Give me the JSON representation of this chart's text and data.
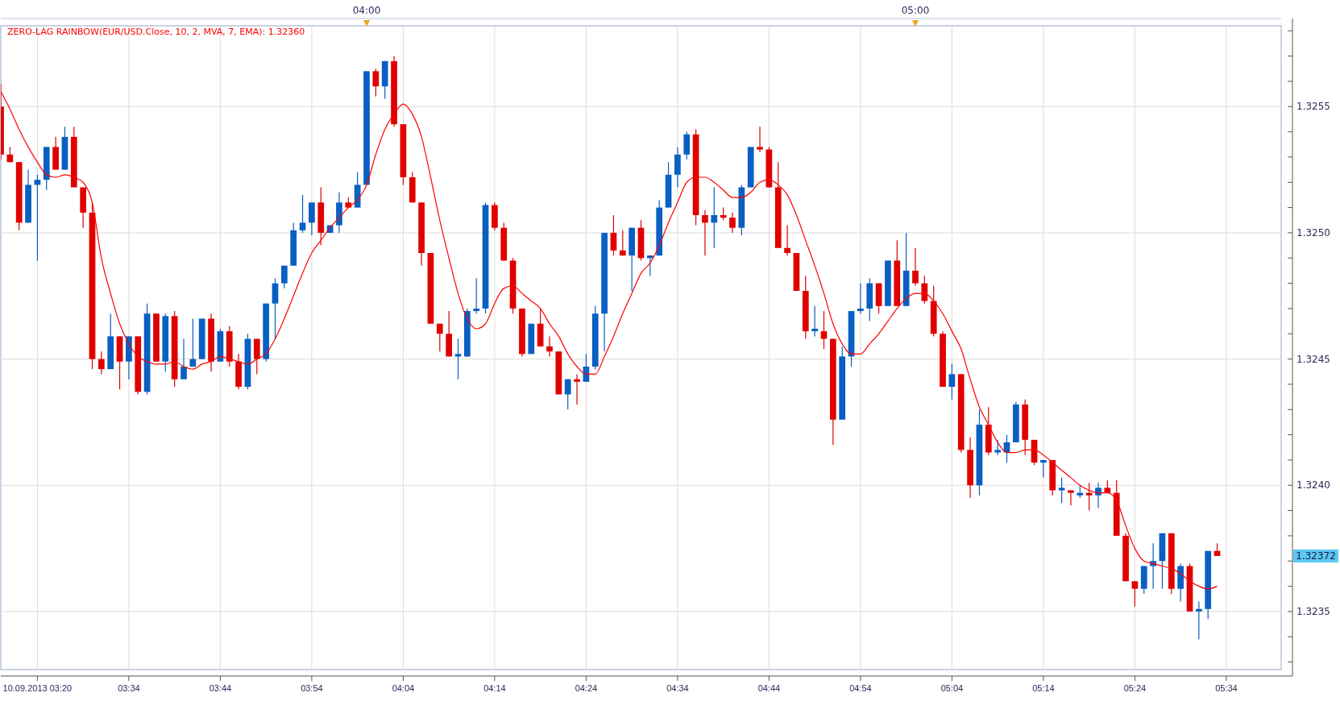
{
  "chart_data": {
    "type": "candlestick",
    "title": "ZERO-LAG RAINBOW(EUR/USD.Close, 10, 2, MVA, 7, EMA): 1.32360",
    "x": [
      "2013-09-10T03:20",
      "2013-09-10T03:21",
      "2013-09-10T03:22",
      "2013-09-10T03:23",
      "2013-09-10T03:24",
      "2013-09-10T03:25",
      "2013-09-10T03:26",
      "2013-09-10T03:27",
      "2013-09-10T03:28",
      "2013-09-10T03:29",
      "2013-09-10T03:30",
      "2013-09-10T03:31",
      "2013-09-10T03:32",
      "2013-09-10T03:33",
      "2013-09-10T03:34",
      "2013-09-10T03:35",
      "2013-09-10T03:36",
      "2013-09-10T03:37",
      "2013-09-10T03:38",
      "2013-09-10T03:39",
      "2013-09-10T03:40",
      "2013-09-10T03:41",
      "2013-09-10T03:42",
      "2013-09-10T03:43",
      "2013-09-10T03:44",
      "2013-09-10T03:45",
      "2013-09-10T03:46",
      "2013-09-10T03:47",
      "2013-09-10T03:48",
      "2013-09-10T03:49",
      "2013-09-10T03:50",
      "2013-09-10T03:51",
      "2013-09-10T03:52",
      "2013-09-10T03:53",
      "2013-09-10T03:54",
      "2013-09-10T03:55",
      "2013-09-10T03:56",
      "2013-09-10T03:57",
      "2013-09-10T03:58",
      "2013-09-10T03:59",
      "2013-09-10T04:00",
      "2013-09-10T04:01",
      "2013-09-10T04:02",
      "2013-09-10T04:03",
      "2013-09-10T04:04",
      "2013-09-10T04:05",
      "2013-09-10T04:06",
      "2013-09-10T04:07",
      "2013-09-10T04:08",
      "2013-09-10T04:09",
      "2013-09-10T04:10",
      "2013-09-10T04:11",
      "2013-09-10T04:12",
      "2013-09-10T04:13",
      "2013-09-10T04:14",
      "2013-09-10T04:15",
      "2013-09-10T04:16",
      "2013-09-10T04:17",
      "2013-09-10T04:18",
      "2013-09-10T04:19",
      "2013-09-10T04:20",
      "2013-09-10T04:21",
      "2013-09-10T04:22",
      "2013-09-10T04:23",
      "2013-09-10T04:24",
      "2013-09-10T04:25",
      "2013-09-10T04:26",
      "2013-09-10T04:27",
      "2013-09-10T04:28",
      "2013-09-10T04:29",
      "2013-09-10T04:30",
      "2013-09-10T04:31",
      "2013-09-10T04:32",
      "2013-09-10T04:33",
      "2013-09-10T04:34",
      "2013-09-10T04:35",
      "2013-09-10T04:36",
      "2013-09-10T04:37",
      "2013-09-10T04:38",
      "2013-09-10T04:39",
      "2013-09-10T04:40",
      "2013-09-10T04:41",
      "2013-09-10T04:42",
      "2013-09-10T04:43",
      "2013-09-10T04:44",
      "2013-09-10T04:45",
      "2013-09-10T04:46",
      "2013-09-10T04:47",
      "2013-09-10T04:48",
      "2013-09-10T04:49",
      "2013-09-10T04:50",
      "2013-09-10T04:51",
      "2013-09-10T04:52",
      "2013-09-10T04:53",
      "2013-09-10T04:54",
      "2013-09-10T04:55",
      "2013-09-10T04:56",
      "2013-09-10T04:57",
      "2013-09-10T04:58",
      "2013-09-10T04:59",
      "2013-09-10T05:00",
      "2013-09-10T05:01",
      "2013-09-10T05:02",
      "2013-09-10T05:03",
      "2013-09-10T05:04",
      "2013-09-10T05:05",
      "2013-09-10T05:06",
      "2013-09-10T05:07",
      "2013-09-10T05:08",
      "2013-09-10T05:09",
      "2013-09-10T05:10",
      "2013-09-10T05:11",
      "2013-09-10T05:12",
      "2013-09-10T05:13",
      "2013-09-10T05:14",
      "2013-09-10T05:15",
      "2013-09-10T05:16",
      "2013-09-10T05:17",
      "2013-09-10T05:18",
      "2013-09-10T05:19",
      "2013-09-10T05:20",
      "2013-09-10T05:21",
      "2013-09-10T05:22",
      "2013-09-10T05:23",
      "2013-09-10T05:24",
      "2013-09-10T05:25",
      "2013-09-10T05:26",
      "2013-09-10T05:27",
      "2013-09-10T05:28",
      "2013-09-10T05:29",
      "2013-09-10T05:30",
      "2013-09-10T05:31",
      "2013-09-10T05:32",
      "2013-09-10T05:33"
    ],
    "series": [
      {
        "ohlc": [
          [
            1.3255,
            1.32559,
            1.32529,
            1.32531
          ],
          [
            1.32531,
            1.32534,
            1.32528,
            1.32528
          ],
          [
            1.32528,
            1.32528,
            1.32501,
            1.32504
          ],
          [
            1.32504,
            1.32525,
            1.32504,
            1.32519
          ],
          [
            1.32519,
            1.32523,
            1.32489,
            1.32521
          ],
          [
            1.32521,
            1.32534,
            1.32517,
            1.32534
          ],
          [
            1.32534,
            1.32538,
            1.32525,
            1.32525
          ],
          [
            1.32525,
            1.32542,
            1.32525,
            1.32538
          ],
          [
            1.32538,
            1.32542,
            1.32518,
            1.32518
          ],
          [
            1.32518,
            1.32518,
            1.32502,
            1.32508
          ],
          [
            1.32508,
            1.32512,
            1.32446,
            1.3245
          ],
          [
            1.3245,
            1.32453,
            1.32444,
            1.32446
          ],
          [
            1.32446,
            1.32468,
            1.32446,
            1.32459
          ],
          [
            1.32459,
            1.32459,
            1.32438,
            1.32449
          ],
          [
            1.32449,
            1.32459,
            1.32442,
            1.32459
          ],
          [
            1.32459,
            1.32459,
            1.32436,
            1.32437
          ],
          [
            1.32437,
            1.32472,
            1.32436,
            1.32468
          ],
          [
            1.32468,
            1.32468,
            1.32449,
            1.32449
          ],
          [
            1.32449,
            1.32468,
            1.32445,
            1.32467
          ],
          [
            1.32467,
            1.32469,
            1.32439,
            1.32442
          ],
          [
            1.32442,
            1.32458,
            1.32442,
            1.32447
          ],
          [
            1.32447,
            1.32466,
            1.32447,
            1.3245
          ],
          [
            1.3245,
            1.32466,
            1.3245,
            1.32466
          ],
          [
            1.32466,
            1.32468,
            1.32445,
            1.32449
          ],
          [
            1.32449,
            1.32462,
            1.32449,
            1.32461
          ],
          [
            1.32461,
            1.32463,
            1.32447,
            1.32449
          ],
          [
            1.32449,
            1.32452,
            1.32438,
            1.32439
          ],
          [
            1.32439,
            1.3246,
            1.32438,
            1.32458
          ],
          [
            1.32458,
            1.32458,
            1.32444,
            1.3245
          ],
          [
            1.3245,
            1.32472,
            1.32449,
            1.32472
          ],
          [
            1.32472,
            1.32482,
            1.32458,
            1.3248
          ],
          [
            1.3248,
            1.32487,
            1.32478,
            1.32487
          ],
          [
            1.32487,
            1.32504,
            1.32487,
            1.32501
          ],
          [
            1.32501,
            1.32515,
            1.325,
            1.32504
          ],
          [
            1.32504,
            1.32512,
            1.32499,
            1.32512
          ],
          [
            1.32512,
            1.32518,
            1.32495,
            1.325
          ],
          [
            1.325,
            1.32503,
            1.325,
            1.32503
          ],
          [
            1.32503,
            1.32516,
            1.325,
            1.32512
          ],
          [
            1.32512,
            1.32514,
            1.3251,
            1.3251
          ],
          [
            1.3251,
            1.32524,
            1.3251,
            1.32519
          ],
          [
            1.32519,
            1.32564,
            1.32519,
            1.32564
          ],
          [
            1.32564,
            1.32565,
            1.32554,
            1.32558
          ],
          [
            1.32558,
            1.32568,
            1.32553,
            1.32568
          ],
          [
            1.32568,
            1.3257,
            1.32542,
            1.32543
          ],
          [
            1.32543,
            1.32543,
            1.32519,
            1.32522
          ],
          [
            1.32522,
            1.32524,
            1.32512,
            1.32512
          ],
          [
            1.32512,
            1.32512,
            1.32487,
            1.32492
          ],
          [
            1.32492,
            1.32492,
            1.32464,
            1.32464
          ],
          [
            1.32464,
            1.32464,
            1.32453,
            1.3246
          ],
          [
            1.3246,
            1.32469,
            1.32451,
            1.32451
          ],
          [
            1.32451,
            1.32458,
            1.32442,
            1.32452
          ],
          [
            1.32451,
            1.3247,
            1.32451,
            1.32469
          ],
          [
            1.32469,
            1.32482,
            1.32468,
            1.3247
          ],
          [
            1.3247,
            1.32512,
            1.32468,
            1.32511
          ],
          [
            1.32511,
            1.32512,
            1.32501,
            1.32502
          ],
          [
            1.32502,
            1.32504,
            1.32489,
            1.32489
          ],
          [
            1.32489,
            1.3249,
            1.32468,
            1.3247
          ],
          [
            1.3247,
            1.3247,
            1.32451,
            1.32452
          ],
          [
            1.32452,
            1.32464,
            1.32452,
            1.32464
          ],
          [
            1.32464,
            1.3247,
            1.32455,
            1.32455
          ],
          [
            1.32455,
            1.32459,
            1.32451,
            1.32453
          ],
          [
            1.32453,
            1.32453,
            1.32436,
            1.32436
          ],
          [
            1.32436,
            1.32442,
            1.3243,
            1.32442
          ],
          [
            1.32442,
            1.32444,
            1.32432,
            1.32441
          ],
          [
            1.32441,
            1.32452,
            1.32441,
            1.32447
          ],
          [
            1.32447,
            1.32471,
            1.32446,
            1.32468
          ],
          [
            1.32468,
            1.325,
            1.32453,
            1.325
          ],
          [
            1.325,
            1.32507,
            1.32491,
            1.32493
          ],
          [
            1.32493,
            1.32501,
            1.32491,
            1.32491
          ],
          [
            1.32491,
            1.32502,
            1.32477,
            1.32502
          ],
          [
            1.32502,
            1.32505,
            1.32489,
            1.3249
          ],
          [
            1.3249,
            1.32491,
            1.32483,
            1.32491
          ],
          [
            1.32491,
            1.32513,
            1.32491,
            1.3251
          ],
          [
            1.3251,
            1.32528,
            1.3251,
            1.32523
          ],
          [
            1.32523,
            1.32534,
            1.32518,
            1.32531
          ],
          [
            1.32531,
            1.3254,
            1.32529,
            1.32539
          ],
          [
            1.32539,
            1.32541,
            1.32503,
            1.32507
          ],
          [
            1.32507,
            1.32509,
            1.32491,
            1.32504
          ],
          [
            1.32504,
            1.32518,
            1.32494,
            1.32507
          ],
          [
            1.32507,
            1.3251,
            1.32505,
            1.32506
          ],
          [
            1.32506,
            1.32508,
            1.325,
            1.32502
          ],
          [
            1.32502,
            1.32519,
            1.32499,
            1.32518
          ],
          [
            1.32518,
            1.32534,
            1.32518,
            1.32534
          ],
          [
            1.32534,
            1.32542,
            1.32532,
            1.32533
          ],
          [
            1.32533,
            1.32534,
            1.32518,
            1.32518
          ],
          [
            1.32518,
            1.32528,
            1.32494,
            1.32494
          ],
          [
            1.32494,
            1.32503,
            1.32491,
            1.32492
          ],
          [
            1.32492,
            1.32492,
            1.32477,
            1.32477
          ],
          [
            1.32477,
            1.32483,
            1.32458,
            1.32461
          ],
          [
            1.32461,
            1.32471,
            1.32459,
            1.32462
          ],
          [
            1.32461,
            1.32469,
            1.32454,
            1.32458
          ],
          [
            1.32458,
            1.32458,
            1.32416,
            1.32426
          ],
          [
            1.32426,
            1.32455,
            1.32426,
            1.32451
          ],
          [
            1.32451,
            1.32469,
            1.32447,
            1.32469
          ],
          [
            1.32469,
            1.3248,
            1.32468,
            1.3247
          ],
          [
            1.3247,
            1.32482,
            1.32465,
            1.3248
          ],
          [
            1.3248,
            1.3248,
            1.32468,
            1.32471
          ],
          [
            1.32471,
            1.32489,
            1.32471,
            1.32489
          ],
          [
            1.32489,
            1.32497,
            1.32471,
            1.32471
          ],
          [
            1.32471,
            1.325,
            1.32471,
            1.32485
          ],
          [
            1.32485,
            1.32494,
            1.32479,
            1.3248
          ],
          [
            1.3248,
            1.32483,
            1.32472,
            1.32473
          ],
          [
            1.32473,
            1.32479,
            1.32459,
            1.3246
          ],
          [
            1.3246,
            1.32461,
            1.32439,
            1.32439
          ],
          [
            1.32439,
            1.32448,
            1.32434,
            1.32444
          ],
          [
            1.32444,
            1.32444,
            1.32413,
            1.32414
          ],
          [
            1.32414,
            1.32419,
            1.32395,
            1.324
          ],
          [
            1.324,
            1.3243,
            1.32396,
            1.32424
          ],
          [
            1.32424,
            1.32431,
            1.32412,
            1.32413
          ],
          [
            1.32413,
            1.32418,
            1.32412,
            1.32414
          ],
          [
            1.32413,
            1.3242,
            1.32409,
            1.32417
          ],
          [
            1.32417,
            1.32433,
            1.32417,
            1.32432
          ],
          [
            1.32432,
            1.32434,
            1.32412,
            1.32418
          ],
          [
            1.32418,
            1.32418,
            1.32408,
            1.32409
          ],
          [
            1.32409,
            1.3241,
            1.32403,
            1.3241
          ],
          [
            1.3241,
            1.3241,
            1.32396,
            1.32398
          ],
          [
            1.32398,
            1.32403,
            1.32393,
            1.32399
          ],
          [
            1.32398,
            1.32398,
            1.32392,
            1.32397
          ],
          [
            1.32396,
            1.324,
            1.32395,
            1.32397
          ],
          [
            1.32397,
            1.32401,
            1.3239,
            1.32396
          ],
          [
            1.32396,
            1.32401,
            1.32391,
            1.32399
          ],
          [
            1.32399,
            1.32402,
            1.32397,
            1.32397
          ],
          [
            1.32397,
            1.32402,
            1.3238,
            1.3238
          ],
          [
            1.3238,
            1.32381,
            1.32362,
            1.32362
          ],
          [
            1.32362,
            1.32362,
            1.32352,
            1.32359
          ],
          [
            1.32359,
            1.32368,
            1.32357,
            1.32368
          ],
          [
            1.32368,
            1.32377,
            1.32359,
            1.3237
          ],
          [
            1.3237,
            1.32381,
            1.32359,
            1.32381
          ],
          [
            1.32381,
            1.32381,
            1.32357,
            1.32359
          ],
          [
            1.32359,
            1.32369,
            1.32354,
            1.32368
          ],
          [
            1.32368,
            1.32369,
            1.3235,
            1.3235
          ],
          [
            1.3235,
            1.32354,
            1.32339,
            1.32351
          ],
          [
            1.32351,
            1.32374,
            1.32347,
            1.32374
          ],
          [
            1.32374,
            1.32377,
            1.32372,
            1.32372
          ]
        ],
        "colors": [
          "#e00000",
          "#e00000",
          "#e00000",
          "#0a5fc2",
          "#0a5fc2",
          "#0a5fc2",
          "#e00000",
          "#0a5fc2",
          "#e00000",
          "#e00000",
          "#e00000",
          "#e00000",
          "#0a5fc2",
          "#e00000",
          "#0a5fc2",
          "#e00000",
          "#0a5fc2",
          "#e00000",
          "#0a5fc2",
          "#e00000",
          "#0a5fc2",
          "#0a5fc2",
          "#0a5fc2",
          "#e00000",
          "#0a5fc2",
          "#e00000",
          "#e00000",
          "#0a5fc2",
          "#e00000",
          "#0a5fc2",
          "#0a5fc2",
          "#0a5fc2",
          "#0a5fc2",
          "#0a5fc2",
          "#0a5fc2",
          "#e00000",
          "#0a5fc2",
          "#0a5fc2",
          "#e00000",
          "#0a5fc2",
          "#0a5fc2",
          "#e00000",
          "#0a5fc2",
          "#e00000",
          "#e00000",
          "#e00000",
          "#e00000",
          "#e00000",
          "#e00000",
          "#e00000",
          "#0a5fc2",
          "#0a5fc2",
          "#0a5fc2",
          "#0a5fc2",
          "#e00000",
          "#e00000",
          "#e00000",
          "#e00000",
          "#0a5fc2",
          "#e00000",
          "#e00000",
          "#e00000",
          "#0a5fc2",
          "#e00000",
          "#0a5fc2",
          "#0a5fc2",
          "#0a5fc2",
          "#e00000",
          "#e00000",
          "#0a5fc2",
          "#e00000",
          "#0a5fc2",
          "#0a5fc2",
          "#0a5fc2",
          "#0a5fc2",
          "#0a5fc2",
          "#e00000",
          "#e00000",
          "#0a5fc2",
          "#e00000",
          "#e00000",
          "#0a5fc2",
          "#0a5fc2",
          "#e00000",
          "#e00000",
          "#e00000",
          "#e00000",
          "#e00000",
          "#e00000",
          "#0a5fc2",
          "#e00000",
          "#e00000",
          "#0a5fc2",
          "#0a5fc2",
          "#0a5fc2",
          "#0a5fc2",
          "#e00000",
          "#0a5fc2",
          "#e00000",
          "#0a5fc2",
          "#e00000",
          "#e00000",
          "#e00000",
          "#e00000",
          "#0a5fc2",
          "#e00000",
          "#e00000",
          "#0a5fc2",
          "#e00000",
          "#0a5fc2",
          "#0a5fc2",
          "#0a5fc2",
          "#e00000",
          "#e00000",
          "#0a5fc2",
          "#e00000",
          "#0a5fc2",
          "#e00000",
          "#0a5fc2",
          "#e00000",
          "#0a5fc2",
          "#e00000",
          "#e00000",
          "#e00000",
          "#e00000",
          "#0a5fc2",
          "#0a5fc2",
          "#0a5fc2",
          "#e00000",
          "#0a5fc2",
          "#e00000",
          "#0a5fc2",
          "#0a5fc2",
          "#e00000"
        ]
      },
      {
        "type": "line",
        "color": "#ff0000",
        "values": [
          1.32556,
          1.32549,
          1.32541,
          1.32534,
          1.32528,
          1.32523,
          1.32522,
          1.32523,
          1.32522,
          1.3252,
          1.32512,
          1.3249,
          1.32476,
          1.32464,
          1.32456,
          1.32451,
          1.32449,
          1.32448,
          1.32448,
          1.32449,
          1.32447,
          1.32446,
          1.32448,
          1.32449,
          1.32451,
          1.3245,
          1.32449,
          1.32448,
          1.3245,
          1.32452,
          1.32458,
          1.32466,
          1.32475,
          1.32484,
          1.32492,
          1.32497,
          1.32502,
          1.32506,
          1.3251,
          1.32513,
          1.32519,
          1.32531,
          1.32541,
          1.32547,
          1.32551,
          1.32547,
          1.32538,
          1.32522,
          1.32505,
          1.3249,
          1.32476,
          1.32466,
          1.32462,
          1.32464,
          1.32472,
          1.32478,
          1.32479,
          1.32476,
          1.32473,
          1.3247,
          1.32464,
          1.32459,
          1.32452,
          1.32447,
          1.32444,
          1.32444,
          1.32451,
          1.32459,
          1.32468,
          1.32476,
          1.32484,
          1.32488,
          1.32495,
          1.32504,
          1.32512,
          1.3252,
          1.32522,
          1.32522,
          1.3252,
          1.32517,
          1.32514,
          1.32514,
          1.32516,
          1.3252,
          1.32521,
          1.32519,
          1.32515,
          1.32507,
          1.32497,
          1.32487,
          1.32476,
          1.32464,
          1.32456,
          1.32452,
          1.32452,
          1.32456,
          1.3246,
          1.32465,
          1.3247,
          1.32474,
          1.32476,
          1.32476,
          1.32473,
          1.32468,
          1.32461,
          1.32454,
          1.32442,
          1.32431,
          1.32424,
          1.32417,
          1.32413,
          1.32413,
          1.32414,
          1.32414,
          1.32412,
          1.32409,
          1.32406,
          1.32403,
          1.324,
          1.32398,
          1.32397,
          1.32397,
          1.32394,
          1.32384,
          1.32375,
          1.3237,
          1.32369,
          1.32368,
          1.32367,
          1.32365,
          1.32362,
          1.3236,
          1.32359,
          1.3236
        ]
      }
    ],
    "xlim": [
      "2013-09-10T03:20",
      "2013-09-10T05:40"
    ],
    "xticks": [
      {
        "value": "2013-09-10T03:24",
        "label": "10.09.2013 03:20"
      },
      {
        "value": "2013-09-10T03:34",
        "label": "03:34"
      },
      {
        "value": "2013-09-10T03:44",
        "label": "03:44"
      },
      {
        "value": "2013-09-10T03:54",
        "label": "03:54"
      },
      {
        "value": "2013-09-10T04:04",
        "label": "04:04"
      },
      {
        "value": "2013-09-10T04:14",
        "label": "04:14"
      },
      {
        "value": "2013-09-10T04:24",
        "label": "04:24"
      },
      {
        "value": "2013-09-10T04:34",
        "label": "04:34"
      },
      {
        "value": "2013-09-10T04:44",
        "label": "04:44"
      },
      {
        "value": "2013-09-10T04:54",
        "label": "04:54"
      },
      {
        "value": "2013-09-10T05:04",
        "label": "05:04"
      },
      {
        "value": "2013-09-10T05:14",
        "label": "05:14"
      },
      {
        "value": "2013-09-10T05:24",
        "label": "05:24"
      },
      {
        "value": "2013-09-10T05:34",
        "label": "05:34"
      }
    ],
    "x2lim": [
      "2013-09-10T03:20",
      "2013-09-10T05:40"
    ],
    "x2ticks": [
      {
        "value": "2013-09-10T04:00",
        "label": "04:00"
      },
      {
        "value": "2013-09-10T05:00",
        "label": "05:00"
      }
    ],
    "ylim": [
      1.32327,
      1.32582
    ],
    "yticks": [
      {
        "value": 1.3233,
        "label": null
      },
      {
        "value": 1.3234,
        "label": null
      },
      {
        "value": 1.3235,
        "label": "1.3235"
      },
      {
        "value": 1.3236,
        "label": null
      },
      {
        "value": 1.3237,
        "label": null
      },
      {
        "value": 1.3238,
        "label": null
      },
      {
        "value": 1.3239,
        "label": null
      },
      {
        "value": 1.324,
        "label": "1.3240"
      },
      {
        "value": 1.3241,
        "label": null
      },
      {
        "value": 1.3242,
        "label": null
      },
      {
        "value": 1.3243,
        "label": null
      },
      {
        "value": 1.3244,
        "label": null
      },
      {
        "value": 1.3245,
        "label": "1.3245"
      },
      {
        "value": 1.3246,
        "label": null
      },
      {
        "value": 1.3247,
        "label": null
      },
      {
        "value": 1.3248,
        "label": null
      },
      {
        "value": 1.3249,
        "label": null
      },
      {
        "value": 1.325,
        "label": "1.3250"
      },
      {
        "value": 1.3251,
        "label": null
      },
      {
        "value": 1.3252,
        "label": null
      },
      {
        "value": 1.3253,
        "label": null
      },
      {
        "value": 1.3254,
        "label": null
      },
      {
        "value": 1.3255,
        "label": "1.3255"
      },
      {
        "value": 1.3256,
        "label": null
      },
      {
        "value": 1.3257,
        "label": null
      },
      {
        "value": 1.3258,
        "label": null
      }
    ],
    "annotations": [
      "1.32372"
    ],
    "grid": true
  }
}
